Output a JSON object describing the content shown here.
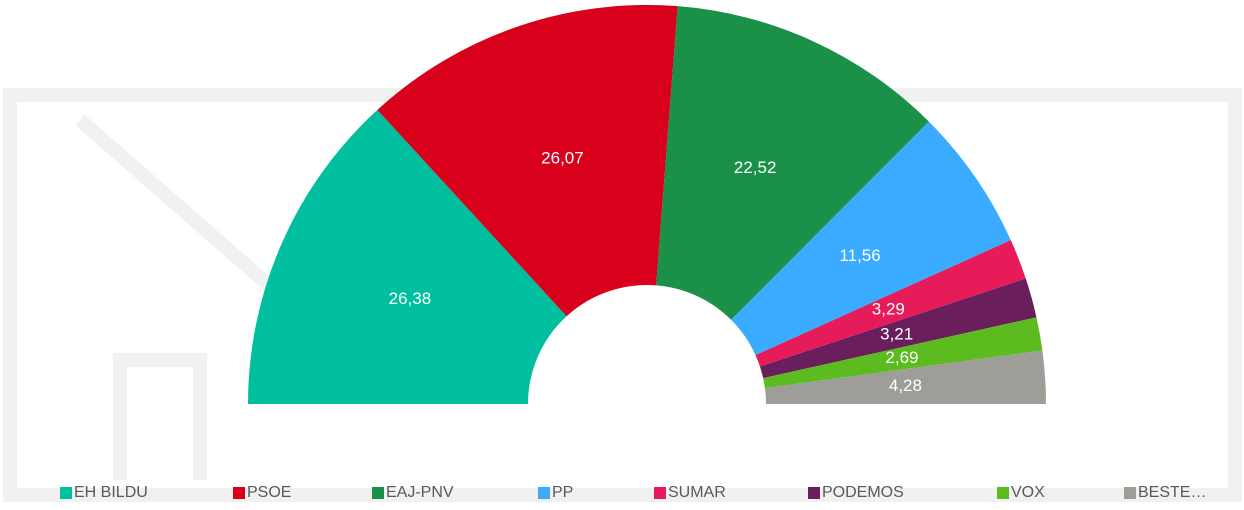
{
  "chart_data": {
    "type": "half-donut",
    "categories": [
      "EH BILDU",
      "PSOE",
      "EAJ-PNV",
      "PP",
      "SUMAR",
      "PODEMOS",
      "VOX",
      "BESTE…"
    ],
    "values": [
      26.38,
      26.07,
      22.52,
      11.56,
      3.29,
      3.21,
      2.69,
      4.28
    ],
    "value_labels": [
      "26,38",
      "26,07",
      "22,52",
      "11,56",
      "3,29",
      "3,21",
      "2,69",
      "4,28"
    ],
    "colors": [
      "#00bf9f",
      "#d9001b",
      "#1a9048",
      "#3aabff",
      "#e61b5a",
      "#6a1e5c",
      "#5cbb1f",
      "#9e9e99"
    ],
    "legend": "bottom"
  }
}
